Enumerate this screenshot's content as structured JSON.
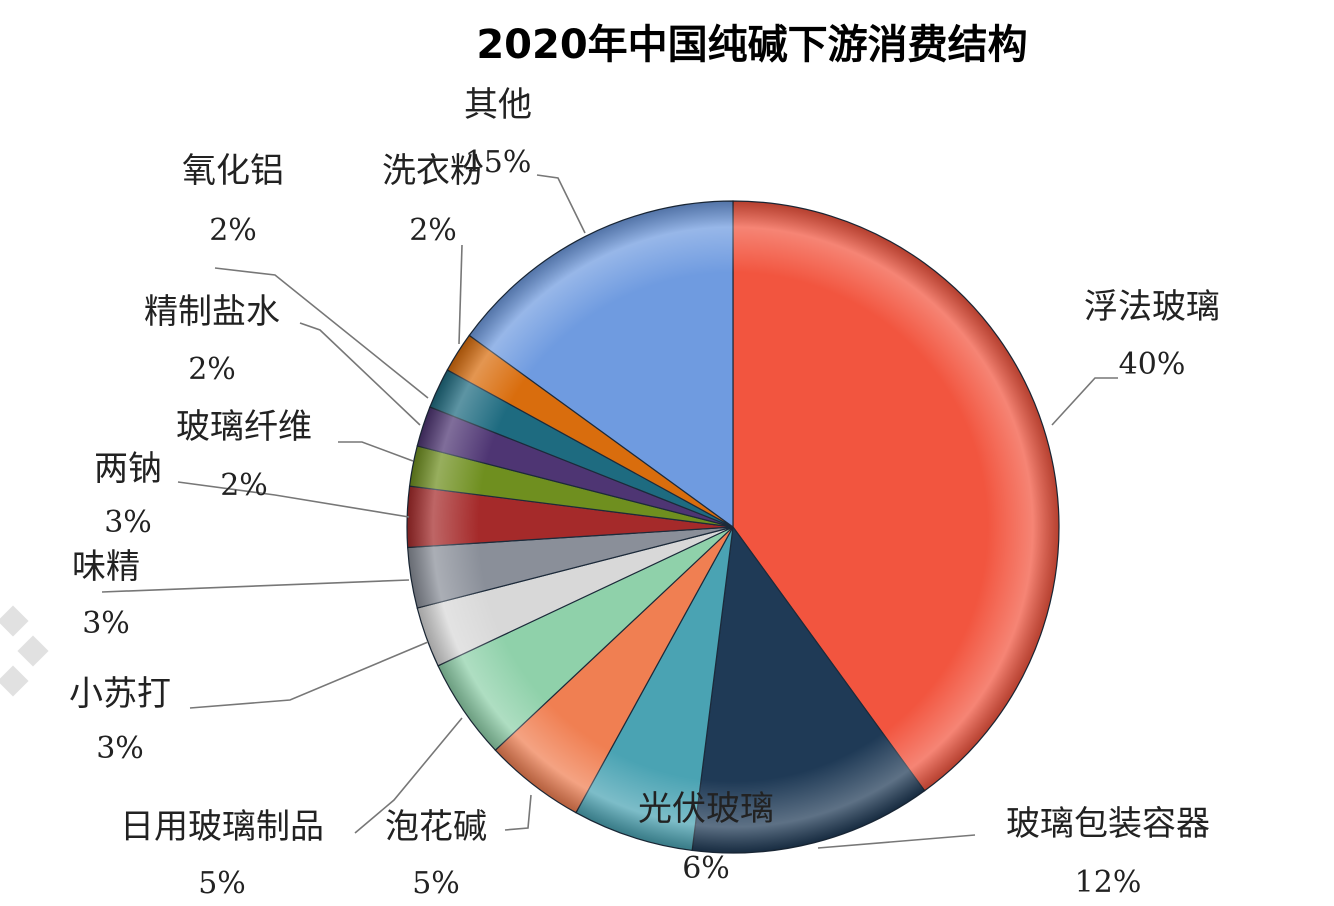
{
  "chart_data": {
    "type": "pie",
    "title": "2020年中国纯碱下游消费结构",
    "slices": [
      {
        "label": "浮法玻璃",
        "value": 40,
        "pct_label": "40%",
        "color": "#f2553f"
      },
      {
        "label": "玻璃包装容器",
        "value": 12,
        "pct_label": "12%",
        "color": "#1f3a56"
      },
      {
        "label": "光伏玻璃",
        "value": 6,
        "pct_label": "6%",
        "color": "#4aa3b3"
      },
      {
        "label": "日用玻璃制品",
        "value": 5,
        "pct_label": "5%",
        "color": "#f07f52"
      },
      {
        "label": "泡花碱",
        "value": 5,
        "pct_label": "5%",
        "color": "#8fd1aa"
      },
      {
        "label": "小苏打",
        "value": 3,
        "pct_label": "3%",
        "color": "#d8d8d8"
      },
      {
        "label": "味精",
        "value": 3,
        "pct_label": "3%",
        "color": "#8a8f99"
      },
      {
        "label": "两钠",
        "value": 3,
        "pct_label": "3%",
        "color": "#a52a2a"
      },
      {
        "label": "玻璃纤维",
        "value": 2,
        "pct_label": "2%",
        "color": "#6f8f1f"
      },
      {
        "label": "精制盐水",
        "value": 2,
        "pct_label": "2%",
        "color": "#4e3573"
      },
      {
        "label": "氧化铝",
        "value": 2,
        "pct_label": "2%",
        "color": "#1e6b80"
      },
      {
        "label": "洗衣粉",
        "value": 2,
        "pct_label": "2%",
        "color": "#d96d0d"
      },
      {
        "label": "其他",
        "value": 15,
        "pct_label": "15%",
        "color": "#6f9be0"
      }
    ]
  }
}
